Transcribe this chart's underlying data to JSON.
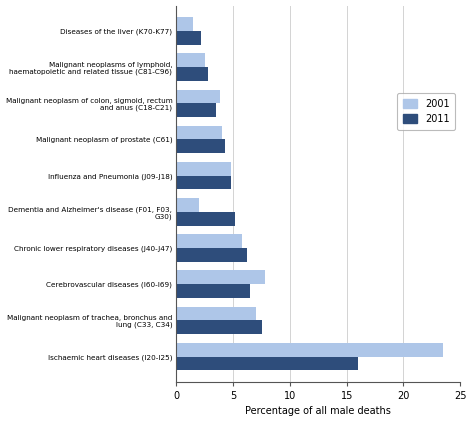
{
  "categories": [
    "Diseases of the liver (K70-K77)",
    "Malignant neoplasms of lymphoid,\nhaematopoietic and related tissue (C81-C96)",
    "Malignant neoplasm of colon, sigmoid, rectum\nand anus (C18-C21)",
    "Malignant neoplasm of prostate (C61)",
    "Influenza and Pneumonia (J09-J18)",
    "Dementia and Alzheimer's disease (F01, F03,\nG30)",
    "Chronic lower respiratory diseases (J40-J47)",
    "Cerebrovascular diseases (I60-I69)",
    "Malignant neoplasm of trachea, bronchus and\nlung (C33, C34)",
    "Ischaemic heart diseases (I20-I25)"
  ],
  "values_2001": [
    1.5,
    2.5,
    3.8,
    4.0,
    4.8,
    2.0,
    5.8,
    7.8,
    7.0,
    23.5
  ],
  "values_2011": [
    2.2,
    2.8,
    3.5,
    4.3,
    4.8,
    5.2,
    6.2,
    6.5,
    7.5,
    16.0
  ],
  "color_2001": "#aec6e8",
  "color_2011": "#2e4d7b",
  "xlabel": "Percentage of all male deaths",
  "xlim": [
    0,
    25
  ],
  "xticks": [
    0,
    5,
    10,
    15,
    20,
    25
  ],
  "legend_labels": [
    "2001",
    "2011"
  ],
  "bar_height": 0.38
}
